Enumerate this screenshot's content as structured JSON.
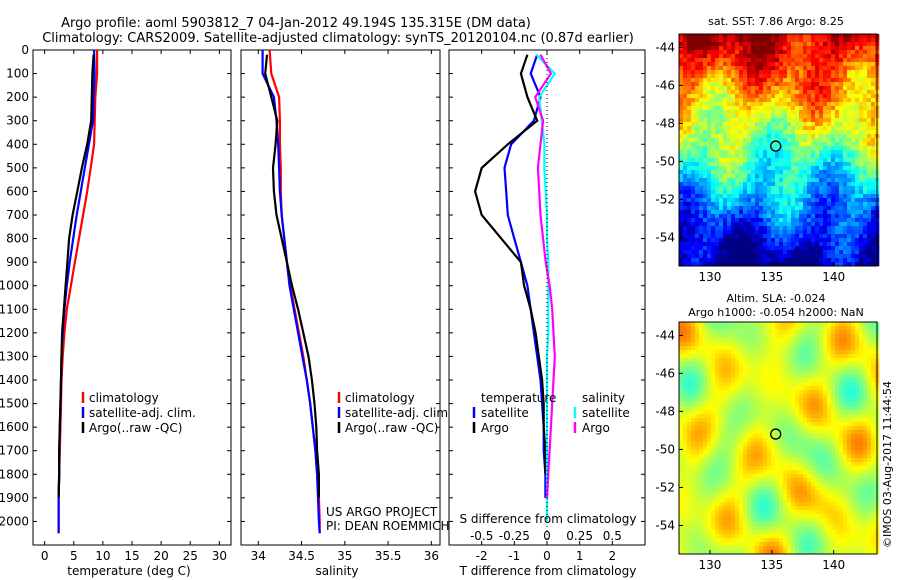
{
  "figure": {
    "title_line1": "Argo profile: aoml 5903812_7 04-Jan-2012 49.194S 135.315E (DM data)",
    "title_line2": "Climatology: CARS2009. Satellite-adjusted climatology: synTS_20120104.nc (0.87d earlier)",
    "stamp": "©IMOS 03-Aug-2017 11:44:54",
    "project_line1": "US ARGO PROJECT",
    "project_line2": "PI: DEAN ROEMMICH"
  },
  "chart_data": [
    {
      "type": "line",
      "xlabel": "temperature (deg C)",
      "ylabel": "",
      "xlim": [
        -2,
        32
      ],
      "ylim": [
        2100,
        0
      ],
      "xticks": [
        0,
        5,
        10,
        15,
        20,
        25,
        30
      ],
      "yticks": [
        0,
        100,
        200,
        300,
        400,
        500,
        600,
        700,
        800,
        900,
        1000,
        1100,
        1200,
        1300,
        1400,
        1500,
        1600,
        1700,
        1800,
        1900,
        2000
      ],
      "legend": [
        "climatology",
        "satellite-adj. clim.",
        "Argo(..raw -QC)"
      ],
      "legend_position": "lower-right",
      "series": [
        {
          "name": "climatology",
          "color": "#ff0000",
          "x": [
            9.0,
            9.0,
            8.7,
            8.6,
            8.5,
            7.9,
            7.3,
            6.6,
            5.9,
            5.2,
            4.5,
            3.8,
            3.4,
            3.1,
            2.9,
            2.8,
            2.7,
            2.6,
            2.5,
            2.4,
            2.4,
            2.4
          ],
          "y": [
            0,
            100,
            200,
            300,
            400,
            500,
            600,
            700,
            800,
            900,
            1000,
            1100,
            1200,
            1300,
            1400,
            1500,
            1600,
            1700,
            1800,
            1900,
            2000,
            2050
          ]
        },
        {
          "name": "satellite-adj. clim.",
          "color": "#0000ff",
          "x": [
            8.5,
            8.6,
            8.4,
            8.3,
            7.6,
            6.9,
            6.2,
            5.5,
            4.9,
            4.3,
            3.8,
            3.4,
            3.1,
            2.9,
            2.8,
            2.7,
            2.6,
            2.5,
            2.5,
            2.4,
            2.4,
            2.4
          ],
          "y": [
            0,
            100,
            200,
            300,
            400,
            500,
            600,
            700,
            800,
            900,
            1000,
            1100,
            1200,
            1300,
            1400,
            1500,
            1600,
            1700,
            1800,
            1900,
            2000,
            2050
          ]
        },
        {
          "name": "Argo(..raw -QC)",
          "color": "#000000",
          "x": [
            8.4,
            8.2,
            8.1,
            8.0,
            7.3,
            6.4,
            5.6,
            4.8,
            4.2,
            3.9,
            3.6,
            3.3,
            3.0,
            2.9,
            2.8,
            2.7,
            2.6,
            2.5,
            2.5,
            2.4
          ],
          "y": [
            20,
            100,
            200,
            300,
            400,
            500,
            600,
            700,
            800,
            900,
            1000,
            1100,
            1200,
            1300,
            1400,
            1500,
            1600,
            1700,
            1800,
            1900
          ]
        }
      ]
    },
    {
      "type": "line",
      "xlabel": "salinity",
      "ylabel": "",
      "xlim": [
        33.8,
        36.1
      ],
      "ylim": [
        2100,
        0
      ],
      "xticks": [
        34,
        34.5,
        35,
        35.5,
        36
      ],
      "legend": [
        "climatology",
        "satellite-adj. clim.",
        "Argo(..raw -QC)"
      ],
      "legend_position": "lower-right",
      "series": [
        {
          "name": "climatology",
          "color": "#ff0000",
          "x": [
            34.13,
            34.15,
            34.24,
            34.25,
            34.25,
            34.26,
            34.26,
            34.27,
            34.3,
            34.33,
            34.37,
            34.42,
            34.47,
            34.52,
            34.56,
            34.6,
            34.63,
            34.66,
            34.68,
            34.7,
            34.71,
            34.71
          ],
          "y": [
            0,
            100,
            200,
            300,
            400,
            500,
            600,
            700,
            800,
            900,
            1000,
            1100,
            1200,
            1300,
            1400,
            1500,
            1600,
            1700,
            1800,
            1900,
            2000,
            2050
          ]
        },
        {
          "name": "satellite-adj. clim.",
          "color": "#0000ff",
          "x": [
            34.05,
            34.05,
            34.18,
            34.21,
            34.23,
            34.24,
            34.25,
            34.27,
            34.3,
            34.33,
            34.36,
            34.41,
            34.46,
            34.51,
            34.56,
            34.6,
            34.63,
            34.66,
            34.68,
            34.69,
            34.7,
            34.71
          ],
          "y": [
            0,
            100,
            200,
            300,
            400,
            500,
            600,
            700,
            800,
            900,
            1000,
            1100,
            1200,
            1300,
            1400,
            1500,
            1600,
            1700,
            1800,
            1900,
            2000,
            2050
          ]
        },
        {
          "name": "Argo(..raw -QC)",
          "color": "#000000",
          "x": [
            34.1,
            34.08,
            34.15,
            34.22,
            34.2,
            34.17,
            34.18,
            34.21,
            34.27,
            34.33,
            34.39,
            34.46,
            34.52,
            34.58,
            34.62,
            34.65,
            34.67,
            34.68,
            34.7,
            34.7
          ],
          "y": [
            20,
            100,
            200,
            300,
            400,
            500,
            600,
            700,
            800,
            900,
            1000,
            1100,
            1200,
            1300,
            1400,
            1500,
            1600,
            1700,
            1800,
            1900
          ]
        }
      ]
    },
    {
      "type": "line",
      "xlabel": "T difference from climatology",
      "xlabel_top": "S difference from climatology",
      "xlim": [
        -3,
        3
      ],
      "ylim": [
        2100,
        0
      ],
      "xticks": [
        -2,
        -1,
        0,
        1,
        2
      ],
      "xticks_top": [
        "-0.5",
        "-0.25",
        "0",
        "0.25",
        "0.5"
      ],
      "legend_temperature_title": "temperature",
      "legend_salinity_title": "salinity",
      "legend_temperature": [
        "satellite",
        "Argo"
      ],
      "legend_salinity": [
        "satellite",
        "Argo"
      ],
      "legend_position": "lower-center",
      "series": [
        {
          "name": "satellite",
          "color": "#0000ff",
          "quantity": "temperature",
          "x": [
            -0.3,
            -0.5,
            -0.2,
            -0.4,
            -1.1,
            -1.3,
            -1.25,
            -1.2,
            -1.0,
            -0.8,
            -0.6,
            -0.5,
            -0.4,
            -0.3,
            -0.2,
            -0.15,
            -0.1,
            -0.1,
            -0.05,
            -0.05
          ],
          "y": [
            20,
            100,
            200,
            300,
            400,
            500,
            600,
            700,
            800,
            900,
            1000,
            1100,
            1200,
            1300,
            1400,
            1500,
            1600,
            1700,
            1800,
            1900
          ]
        },
        {
          "name": "Argo",
          "color": "#000000",
          "quantity": "temperature",
          "x": [
            -0.6,
            -0.8,
            -0.6,
            -0.3,
            -1.2,
            -2.0,
            -2.2,
            -2.0,
            -1.4,
            -0.8,
            -0.7,
            -0.5,
            -0.35,
            -0.25,
            -0.15,
            -0.1,
            -0.1,
            -0.05,
            -0.05
          ],
          "y": [
            20,
            100,
            200,
            300,
            400,
            500,
            600,
            700,
            800,
            900,
            1000,
            1100,
            1200,
            1300,
            1400,
            1500,
            1600,
            1700,
            1800
          ]
        },
        {
          "name": "satellite",
          "color": "#00ffff",
          "quantity": "salinity",
          "x": [
            -0.08,
            0.06,
            -0.06,
            -0.04,
            -0.02,
            -0.02,
            -0.01,
            0.0,
            0.0,
            0.01,
            0.01,
            0.01,
            0.01,
            0.0,
            0.0,
            0.0,
            0.0,
            0.0,
            0.0,
            0.0,
            0.0
          ],
          "y": [
            20,
            100,
            200,
            300,
            400,
            500,
            600,
            700,
            800,
            900,
            1000,
            1100,
            1200,
            1300,
            1400,
            1500,
            1600,
            1700,
            1800,
            1900,
            2000
          ]
        },
        {
          "name": "Argo",
          "color": "#ff00ff",
          "quantity": "salinity",
          "x": [
            -0.05,
            0.03,
            -0.09,
            -0.03,
            -0.05,
            -0.07,
            -0.06,
            -0.05,
            -0.03,
            -0.01,
            0.02,
            0.04,
            0.05,
            0.06,
            0.05,
            0.04,
            0.03,
            0.02,
            0.01,
            0.0
          ],
          "y": [
            20,
            100,
            200,
            300,
            400,
            500,
            600,
            700,
            800,
            900,
            1000,
            1100,
            1200,
            1300,
            1400,
            1500,
            1600,
            1700,
            1800,
            1900
          ]
        }
      ]
    },
    {
      "type": "heatmap",
      "title": "sat. SST: 7.86 Argo: 8.25",
      "xlim": [
        127.5,
        143.5
      ],
      "ylim": [
        -55.5,
        -43.3
      ],
      "xticks": [
        130,
        135,
        140
      ],
      "yticks": [
        -44,
        -46,
        -48,
        -50,
        -52,
        -54
      ],
      "colormap": "jet",
      "marker": {
        "lon": 135.315,
        "lat": -49.194
      }
    },
    {
      "type": "heatmap",
      "title_line1": "Altim. SLA: -0.024",
      "title_line2": "Argo h1000: -0.054 h2000: NaN",
      "xlim": [
        127.5,
        143.5
      ],
      "ylim": [
        -55.5,
        -43.3
      ],
      "xticks": [
        130,
        135,
        140
      ],
      "yticks": [
        -44,
        -46,
        -48,
        -50,
        -52,
        -54
      ],
      "colormap": "jet",
      "marker": {
        "lon": 135.315,
        "lat": -49.194
      }
    }
  ]
}
